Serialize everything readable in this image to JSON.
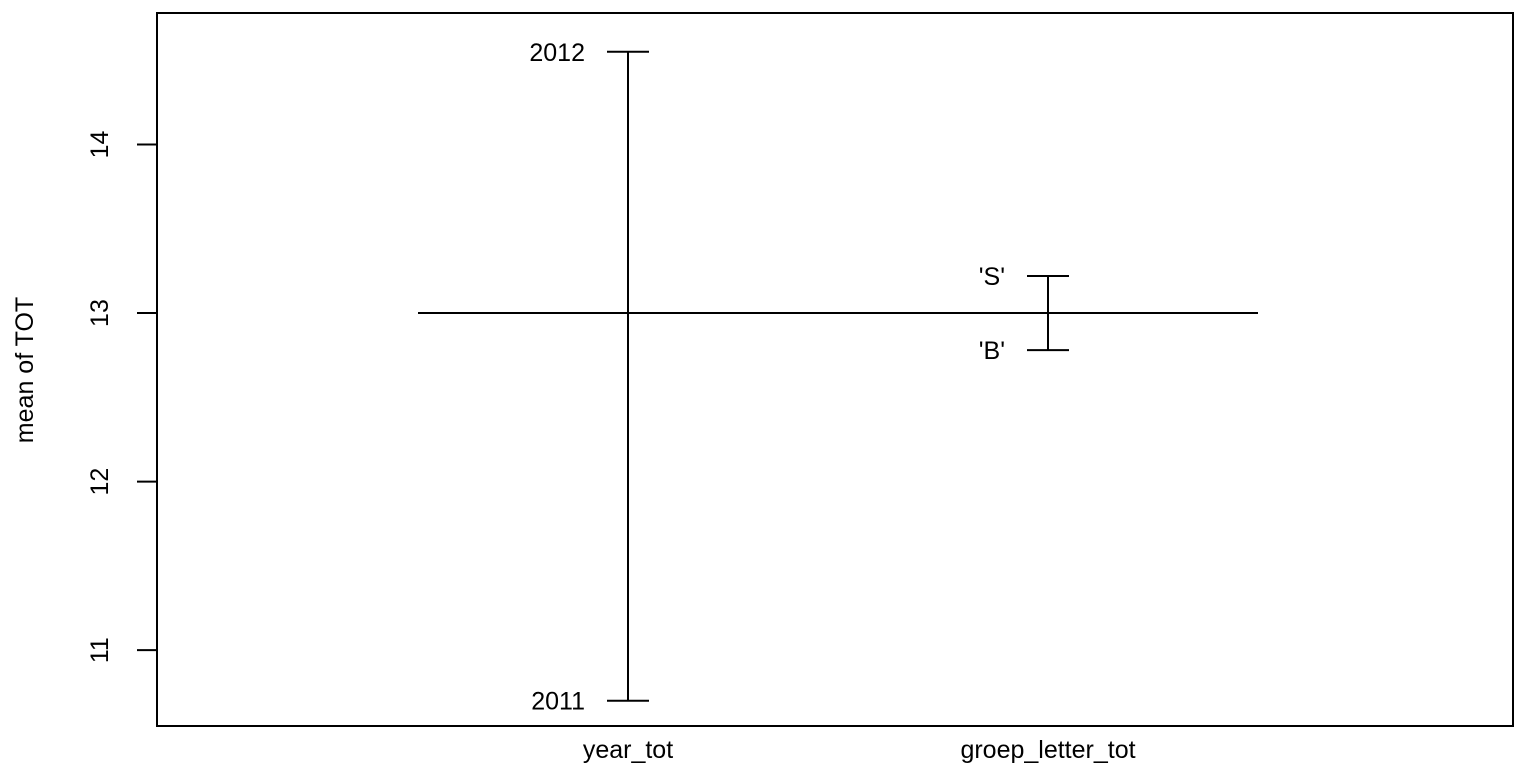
{
  "chart_data": {
    "type": "design-plot",
    "ylabel": "mean of TOT",
    "xlabel": "",
    "ylim": [
      10.55,
      14.78
    ],
    "yticks": [
      "11",
      "12",
      "13",
      "14"
    ],
    "grand_mean": 13.0,
    "factors": [
      {
        "name": "year_tot",
        "levels": [
          {
            "label": "2012",
            "value": 14.55
          },
          {
            "label": "2011",
            "value": 10.7
          }
        ]
      },
      {
        "name": "groep_letter_tot",
        "levels": [
          {
            "label": "'S'",
            "value": 13.22
          },
          {
            "label": "'B'",
            "value": 12.78
          }
        ]
      }
    ],
    "colors": {
      "line": "#000000",
      "background": "#ffffff"
    }
  }
}
